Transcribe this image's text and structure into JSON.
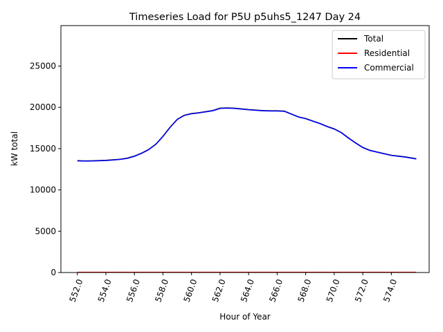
{
  "chart_data": {
    "type": "line",
    "title": "Timeseries Load for P5U p5uhs5_1247  Day 24",
    "xlabel": "Hour of Year",
    "ylabel": "kW total",
    "xlim": [
      550.85,
      576.65
    ],
    "ylim": [
      0,
      29900
    ],
    "x_ticks": [
      552,
      554,
      556,
      558,
      560,
      562,
      564,
      566,
      568,
      570,
      572,
      574
    ],
    "x_tick_labels": [
      "552.0",
      "554.0",
      "556.0",
      "558.0",
      "560.0",
      "562.0",
      "564.0",
      "566.0",
      "568.0",
      "570.0",
      "572.0",
      "574.0"
    ],
    "y_ticks": [
      0,
      5000,
      10000,
      15000,
      20000,
      25000
    ],
    "y_tick_labels": [
      "0",
      "5000",
      "10000",
      "15000",
      "20000",
      "25000"
    ],
    "grid": false,
    "legend_position": "top-right",
    "x": [
      552.0,
      552.5,
      553.0,
      553.5,
      554.0,
      554.5,
      555.0,
      555.5,
      556.0,
      556.5,
      557.0,
      557.5,
      558.0,
      558.5,
      559.0,
      559.5,
      560.0,
      560.5,
      561.0,
      561.5,
      562.0,
      562.5,
      563.0,
      563.5,
      564.0,
      564.5,
      565.0,
      565.5,
      566.0,
      566.5,
      567.0,
      567.5,
      568.0,
      568.5,
      569.0,
      569.5,
      570.0,
      570.5,
      571.0,
      571.5,
      572.0,
      572.5,
      573.0,
      573.5,
      574.0,
      574.5,
      575.0,
      575.75
    ],
    "series": [
      {
        "name": "Total",
        "color": "#000000",
        "values": [
          13550,
          13520,
          13530,
          13560,
          13590,
          13650,
          13720,
          13850,
          14100,
          14450,
          14900,
          15550,
          16500,
          17600,
          18550,
          19050,
          19250,
          19350,
          19480,
          19620,
          19900,
          19930,
          19900,
          19820,
          19730,
          19670,
          19610,
          19590,
          19590,
          19550,
          19200,
          18850,
          18650,
          18350,
          18050,
          17700,
          17400,
          16950,
          16300,
          15700,
          15150,
          14800,
          14600,
          14400,
          14200,
          14100,
          14000,
          13780
        ]
      },
      {
        "name": "Residential",
        "color": "#ff0000",
        "values": [
          30,
          30,
          30,
          30,
          30,
          30,
          30,
          30,
          30,
          30,
          30,
          30,
          30,
          30,
          30,
          30,
          30,
          30,
          30,
          30,
          30,
          30,
          30,
          30,
          30,
          30,
          30,
          30,
          30,
          30,
          30,
          30,
          30,
          30,
          30,
          30,
          30,
          30,
          30,
          30,
          30,
          30,
          30,
          30,
          30,
          30,
          30,
          30
        ]
      },
      {
        "name": "Commercial",
        "color": "#0000ff",
        "values": [
          13520,
          13490,
          13500,
          13530,
          13560,
          13620,
          13690,
          13820,
          14070,
          14420,
          14870,
          15520,
          16470,
          17570,
          18520,
          19020,
          19220,
          19320,
          19450,
          19590,
          19870,
          19900,
          19870,
          19790,
          19700,
          19640,
          19580,
          19560,
          19560,
          19520,
          19170,
          18820,
          18620,
          18320,
          18020,
          17670,
          17370,
          16920,
          16270,
          15670,
          15120,
          14770,
          14570,
          14370,
          14170,
          14070,
          13970,
          13750
        ]
      }
    ]
  }
}
